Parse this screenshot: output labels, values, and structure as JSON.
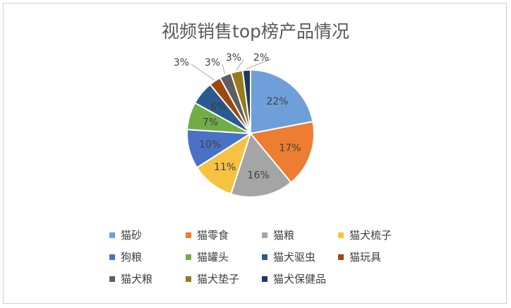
{
  "chart_data": {
    "type": "pie",
    "title": "视频销售top榜产品情况",
    "categories": [
      "猫砂",
      "猫零食",
      "猫粮",
      "猫犬梳子",
      "狗粮",
      "猫罐头",
      "猫犬驱虫",
      "猫玩具",
      "猫犬粮",
      "猫犬垫子",
      "猫犬保健品"
    ],
    "values": [
      22,
      17,
      16,
      11,
      10,
      7,
      6,
      3,
      3,
      3,
      2
    ],
    "labels": [
      "22%",
      "17%",
      "16%",
      "11%",
      "10%",
      "7%",
      "6%",
      "3%",
      "3%",
      "3%",
      "2%"
    ],
    "colors": [
      "#6f9fd8",
      "#ed7d31",
      "#a5a5a5",
      "#f5c242",
      "#4a72c4",
      "#70ad47",
      "#2a5a8f",
      "#9e480e",
      "#5f5f5f",
      "#9a7b1a",
      "#1f3864"
    ],
    "legend_position": "bottom"
  }
}
